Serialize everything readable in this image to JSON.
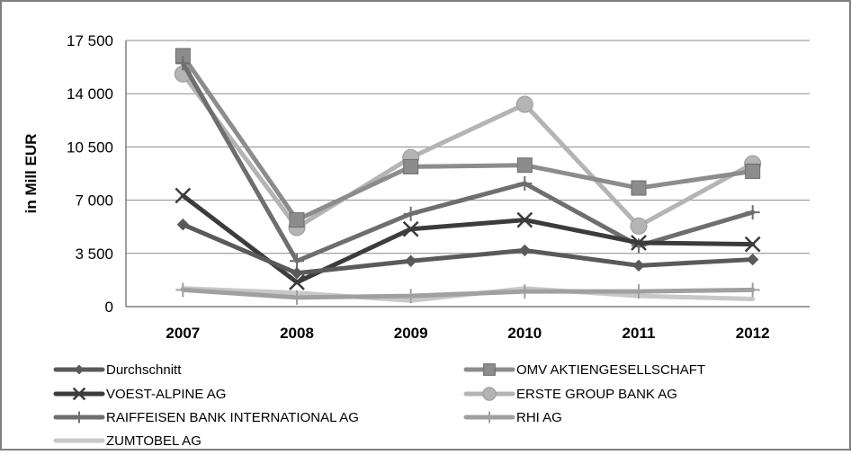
{
  "chart_data": {
    "type": "line",
    "title": "",
    "xlabel": "",
    "ylabel": "in Mill EUR",
    "categories": [
      "2007",
      "2008",
      "2009",
      "2010",
      "2011",
      "2012"
    ],
    "ylim": [
      0,
      17500
    ],
    "yticks": [
      0,
      3500,
      7000,
      10500,
      14000,
      17500
    ],
    "ytick_labels": [
      "0",
      "3 500",
      "7 000",
      "10 500",
      "14 000",
      "17 500"
    ],
    "grid": "horizontal",
    "legend_position": "bottom",
    "series": [
      {
        "name": "Durchschnitt",
        "values": [
          5400,
          2200,
          3000,
          3700,
          2700,
          3100
        ],
        "color": "#5a5a5a",
        "marker": "diamond"
      },
      {
        "name": "OMV AKTIENGESELLSCHAFT",
        "values": [
          16500,
          5700,
          9200,
          9300,
          7800,
          8900
        ],
        "color": "#8c8c8c",
        "marker": "square"
      },
      {
        "name": "VOEST-ALPINE AG",
        "values": [
          7300,
          1600,
          5100,
          5700,
          4200,
          4100
        ],
        "color": "#3c3c3c",
        "marker": "x"
      },
      {
        "name": "ERSTE GROUP BANK AG",
        "values": [
          15300,
          5200,
          9800,
          13300,
          5300,
          9400
        ],
        "color": "#b4b4b4",
        "marker": "circle"
      },
      {
        "name": "RAIFFEISEN BANK INTERNATIONAL AG",
        "values": [
          16000,
          3000,
          6100,
          8100,
          4000,
          6200
        ],
        "color": "#6e6e6e",
        "marker": "plus"
      },
      {
        "name": "RHI AG",
        "values": [
          1100,
          600,
          700,
          1000,
          1000,
          1100
        ],
        "color": "#a0a0a0",
        "marker": "plus"
      },
      {
        "name": "ZUMTOBEL AG",
        "values": [
          1200,
          900,
          400,
          1200,
          700,
          500
        ],
        "color": "#c8c8c8",
        "marker": "none"
      }
    ]
  }
}
